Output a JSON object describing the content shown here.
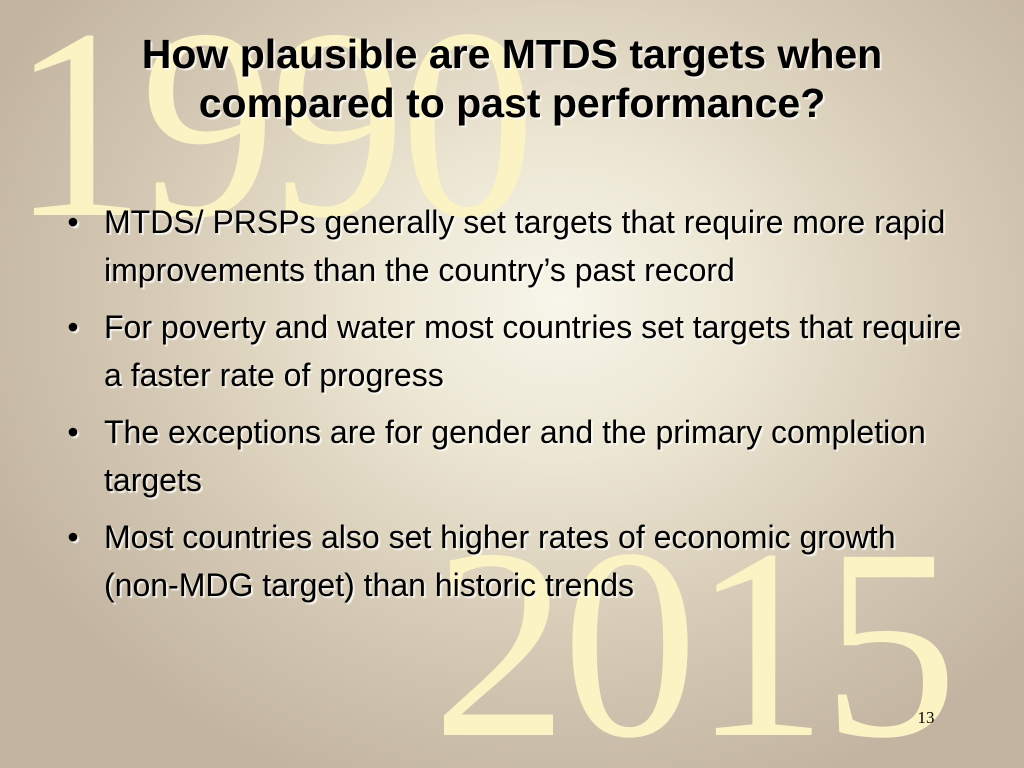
{
  "watermarks": {
    "top_year": "1990",
    "bottom_year": "2015"
  },
  "slide": {
    "title": "How plausible are MTDS targets when compared to past performance?",
    "bullets": [
      {
        "marker": "•",
        "text": "MTDS/ PRSPs generally set targets that require more rapid improvements than the country’s past record"
      },
      {
        "marker": "•",
        "text": "For poverty and water most countries set targets that require a faster rate of progress"
      },
      {
        "marker": "•",
        "text": "The exceptions are for gender and the primary completion targets"
      },
      {
        "marker": "•",
        "text": "Most countries also set higher rates of economic growth (non-MDG target) than historic trends"
      }
    ],
    "page_number": "13"
  },
  "colors": {
    "watermark": "#fbf3c4",
    "background_center": "#f7f6ea",
    "background_edge": "#c2b4a1",
    "text": "#000000"
  }
}
